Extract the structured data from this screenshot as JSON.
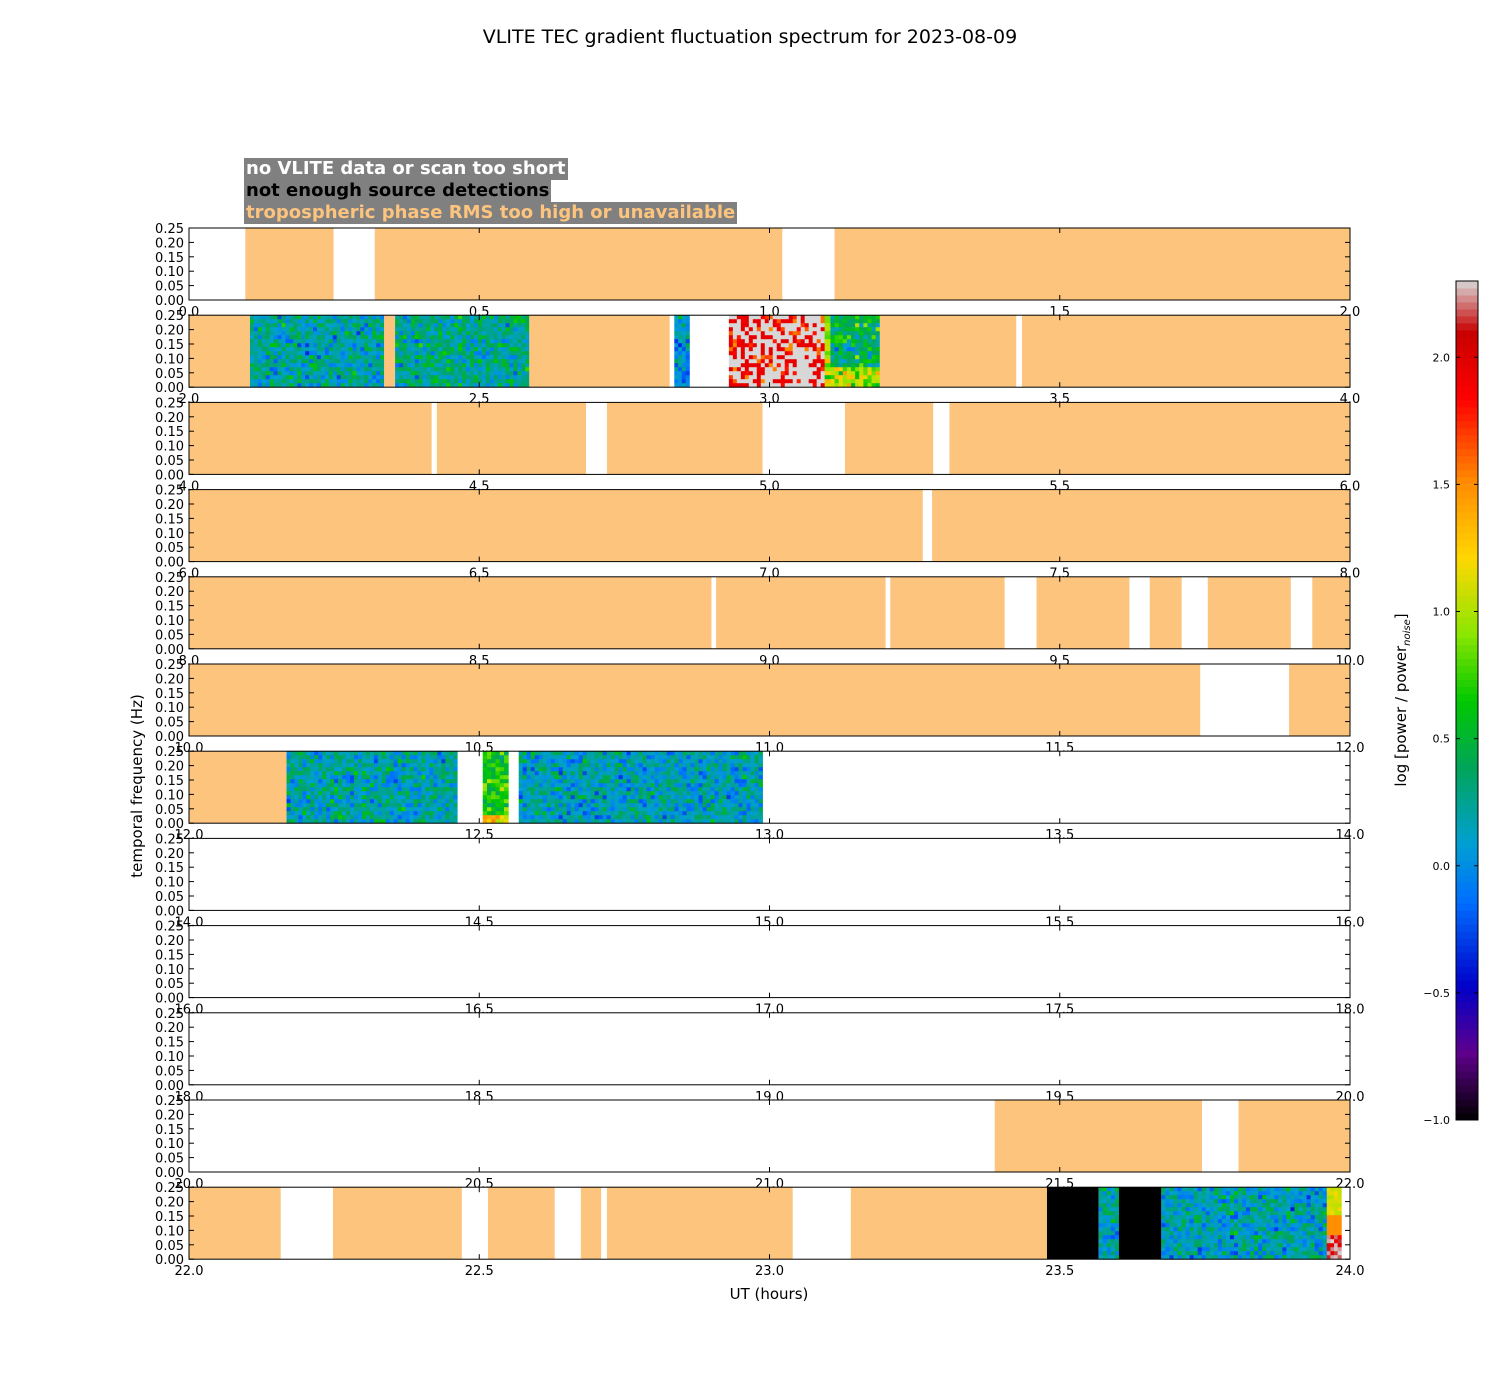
{
  "chart_data": {
    "type": "heatmap",
    "title": "VLITE TEC gradient fluctuation spectrum for 2023-08-09",
    "xlabel": "UT (hours)",
    "ylabel": "temporal frequency (Hz)",
    "ylim": [
      0.0,
      0.25
    ],
    "y_ticks": [
      "0.00",
      "0.05",
      "0.10",
      "0.15",
      "0.20",
      "0.25"
    ],
    "legend": [
      {
        "label": "no VLITE data or scan too short",
        "color": "#ffffff"
      },
      {
        "label": "not enough source detections",
        "color": "#000000"
      },
      {
        "label": "tropospheric phase RMS too high or unavailable",
        "color": "#fdc47d"
      }
    ],
    "colorbar": {
      "label": "log [power / power",
      "label_sub": "noise",
      "label_end": "]",
      "range": [
        -1.0,
        2.3
      ],
      "ticks": [
        "−1.0",
        "−0.5",
        "0.0",
        "0.5",
        "1.0",
        "1.5",
        "2.0"
      ],
      "tick_values": [
        -1.0,
        -0.5,
        0.0,
        0.5,
        1.0,
        1.5,
        2.0
      ]
    },
    "colors": {
      "tropo": "#fdc47d",
      "nodet": "#000000",
      "nodata": "#ffffff",
      "saturated": "#cccccc"
    },
    "rows": [
      {
        "range": [
          0,
          2
        ],
        "ticks": [
          "0.0",
          "0.5",
          "1.0",
          "1.5",
          "2.0"
        ],
        "segments": [
          [
            0.097,
            0.249,
            "tropo"
          ],
          [
            0.32,
            1.022,
            "tropo"
          ],
          [
            1.112,
            2.0,
            "tropo"
          ]
        ]
      },
      {
        "range": [
          2,
          4
        ],
        "ticks": [
          "2.0",
          "2.5",
          "3.0",
          "3.5",
          "4.0"
        ],
        "segments": [
          [
            2.0,
            2.105,
            "tropo"
          ],
          [
            2.105,
            2.336,
            "spec",
            0.2,
            0
          ],
          [
            2.336,
            2.355,
            "tropo"
          ],
          [
            2.355,
            2.586,
            "spec",
            0.25,
            0
          ],
          [
            2.586,
            2.828,
            "tropo"
          ],
          [
            2.836,
            2.862,
            "spec",
            0.1,
            0
          ],
          [
            2.93,
            3.095,
            "spec",
            2.0,
            1
          ],
          [
            3.095,
            3.105,
            "spec",
            1.0,
            0
          ],
          [
            3.105,
            3.19,
            "spec",
            0.4,
            2
          ],
          [
            3.19,
            3.425,
            "tropo"
          ],
          [
            3.435,
            4.0,
            "tropo"
          ]
        ]
      },
      {
        "range": [
          4,
          6
        ],
        "ticks": [
          "4.0",
          "4.5",
          "5.0",
          "5.5",
          "6.0"
        ],
        "segments": [
          [
            4.0,
            4.418,
            "tropo"
          ],
          [
            4.427,
            4.684,
            "tropo"
          ],
          [
            4.72,
            4.988,
            "tropo"
          ],
          [
            5.13,
            5.282,
            "tropo"
          ],
          [
            5.31,
            6.0,
            "tropo"
          ]
        ]
      },
      {
        "range": [
          6,
          8
        ],
        "ticks": [
          "6.0",
          "6.5",
          "7.0",
          "7.5",
          "8.0"
        ],
        "segments": [
          [
            6.0,
            7.264,
            "tropo"
          ],
          [
            7.28,
            8.0,
            "tropo"
          ]
        ]
      },
      {
        "range": [
          8,
          10
        ],
        "ticks": [
          "8.0",
          "8.5",
          "9.0",
          "9.5",
          "10.0"
        ],
        "segments": [
          [
            8.0,
            8.9,
            "tropo"
          ],
          [
            8.908,
            9.2,
            "tropo"
          ],
          [
            9.208,
            9.405,
            "tropo"
          ],
          [
            9.46,
            9.62,
            "tropo"
          ],
          [
            9.655,
            9.71,
            "tropo"
          ],
          [
            9.755,
            9.898,
            "tropo"
          ],
          [
            9.935,
            10.0,
            "tropo"
          ]
        ]
      },
      {
        "range": [
          10,
          12
        ],
        "ticks": [
          "10.0",
          "10.5",
          "11.0",
          "11.5",
          "12.0"
        ],
        "segments": [
          [
            10.0,
            11.742,
            "tropo"
          ],
          [
            11.895,
            12.0,
            "tropo"
          ]
        ]
      },
      {
        "range": [
          12,
          14
        ],
        "ticks": [
          "12.0",
          "12.5",
          "13.0",
          "13.5",
          "14.0"
        ],
        "segments": [
          [
            12.0,
            12.168,
            "tropo"
          ],
          [
            12.168,
            12.462,
            "spec",
            0.2,
            0
          ],
          [
            12.506,
            12.55,
            "spec",
            0.6,
            3
          ],
          [
            12.568,
            12.988,
            "spec",
            0.15,
            0
          ]
        ]
      },
      {
        "range": [
          14,
          16
        ],
        "ticks": [
          "14.0",
          "14.5",
          "15.0",
          "15.5",
          "16.0"
        ],
        "segments": []
      },
      {
        "range": [
          16,
          18
        ],
        "ticks": [
          "16.0",
          "16.5",
          "17.0",
          "17.5",
          "18.0"
        ],
        "segments": []
      },
      {
        "range": [
          18,
          20
        ],
        "ticks": [
          "18.0",
          "18.5",
          "19.0",
          "19.5",
          "20.0"
        ],
        "segments": []
      },
      {
        "range": [
          20,
          22
        ],
        "ticks": [
          "20.0",
          "20.5",
          "21.0",
          "21.5",
          "22.0"
        ],
        "segments": [
          [
            21.388,
            21.745,
            "tropo"
          ],
          [
            21.808,
            22.0,
            "tropo"
          ]
        ]
      },
      {
        "range": [
          22,
          24
        ],
        "ticks": [
          "22.0",
          "22.5",
          "23.0",
          "23.5",
          "24.0"
        ],
        "segments": [
          [
            22.0,
            22.158,
            "tropo"
          ],
          [
            22.248,
            22.47,
            "tropo"
          ],
          [
            22.515,
            22.63,
            "tropo"
          ],
          [
            22.675,
            22.71,
            "tropo"
          ],
          [
            22.72,
            23.04,
            "tropo"
          ],
          [
            23.14,
            23.478,
            "tropo"
          ],
          [
            23.478,
            23.567,
            "nodet"
          ],
          [
            23.567,
            23.602,
            "spec",
            0.2,
            0
          ],
          [
            23.602,
            23.675,
            "nodet"
          ],
          [
            23.675,
            23.96,
            "spec",
            0.15,
            0
          ],
          [
            23.96,
            23.985,
            "spec",
            1.3,
            4
          ]
        ]
      }
    ]
  }
}
